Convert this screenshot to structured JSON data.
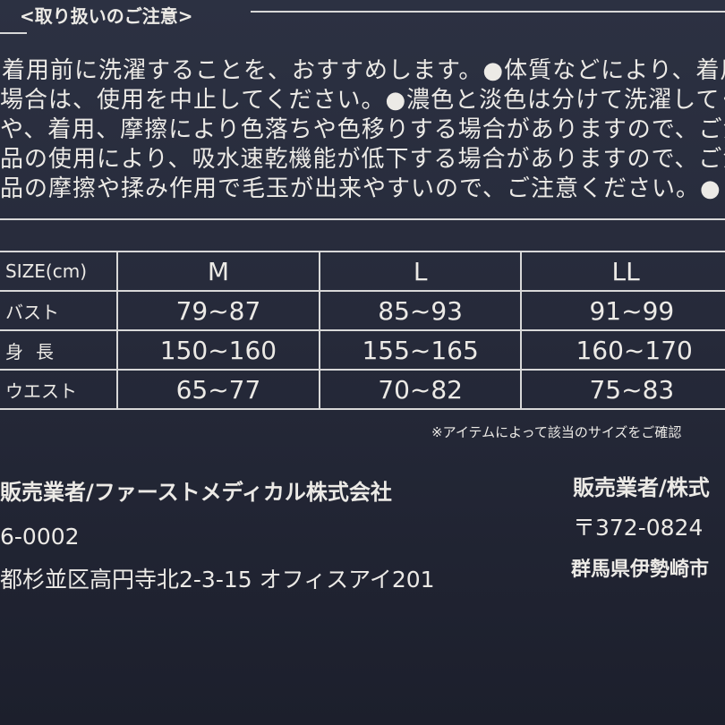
{
  "notice": {
    "title": "<取り扱いのご注意>",
    "lines": [
      "着用前に洗濯することを、おすすめします。●体質などにより、着用",
      "場合は、使用を中止してください。●濃色と淡色は分けて洗濯してく",
      "や、着用、摩擦により色落ちや色移りする場合がありますので、ご注",
      "品の使用により、吸水速乾機能が低下する場合がありますので、ご注",
      "品の摩擦や揉み作用で毛玉が出来やすいので、ご注意ください。●"
    ]
  },
  "table": {
    "header": [
      "SIZE(cm)",
      "M",
      "L",
      "LL"
    ],
    "rows": [
      [
        "バスト",
        "79~87",
        "85~93",
        "91~99"
      ],
      [
        "身長",
        "150~160",
        "155~165",
        "160~170"
      ],
      [
        "ウエスト",
        "65~77",
        "70~82",
        "75~83"
      ]
    ],
    "note": "※アイテムによって該当のサイズをご確認"
  },
  "company": {
    "left": {
      "name": "販売業者/ファーストメディカル株式会社",
      "zip": "6-0002",
      "address": "都杉並区高円寺北2-3-15 オフィスアイ201"
    },
    "right": {
      "name": "販売業者/株式",
      "zip": "〒372-0824",
      "address": "群馬県伊勢崎市"
    }
  }
}
